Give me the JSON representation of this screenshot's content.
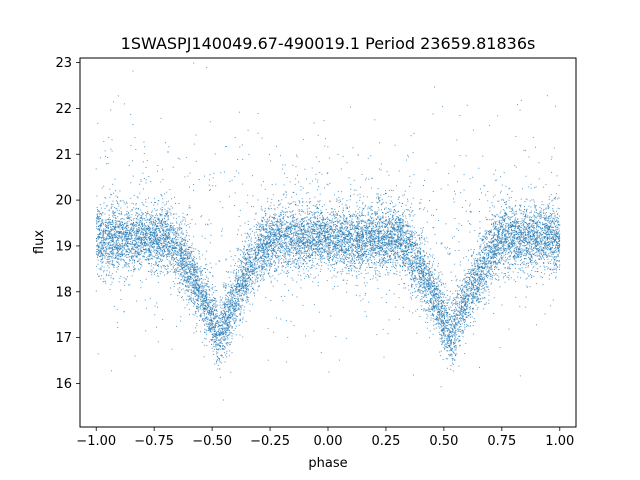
{
  "chart_data": {
    "type": "scatter",
    "title": "1SWASPJ140049.67-490019.1 Period 23659.81836s",
    "xlabel": "phase",
    "ylabel": "flux",
    "xlim": [
      -1.07,
      1.07
    ],
    "ylim": [
      15.05,
      23.1
    ],
    "x_ticks": [
      -1.0,
      -0.75,
      -0.5,
      -0.25,
      0.0,
      0.25,
      0.5,
      0.75,
      1.0
    ],
    "x_tick_labels": [
      "−1.00",
      "−0.75",
      "−0.50",
      "−0.25",
      "0.00",
      "0.25",
      "0.50",
      "0.75",
      "1.00"
    ],
    "y_ticks": [
      16,
      17,
      18,
      19,
      20,
      21,
      22,
      23
    ],
    "y_tick_labels": [
      "16",
      "17",
      "18",
      "19",
      "20",
      "21",
      "22",
      "23"
    ],
    "grid": false,
    "point_color": "#1f77b4",
    "series": [
      {
        "phase_range": [
          -1.0,
          1.0
        ],
        "baseline_flux": 19.15,
        "eclipse_centers": [
          -0.47,
          0.53
        ],
        "eclipse_min_flux": 17.0,
        "eclipse_half_width": 0.22,
        "scatter_sigma": 0.35,
        "approx_points": 14000
      }
    ]
  }
}
